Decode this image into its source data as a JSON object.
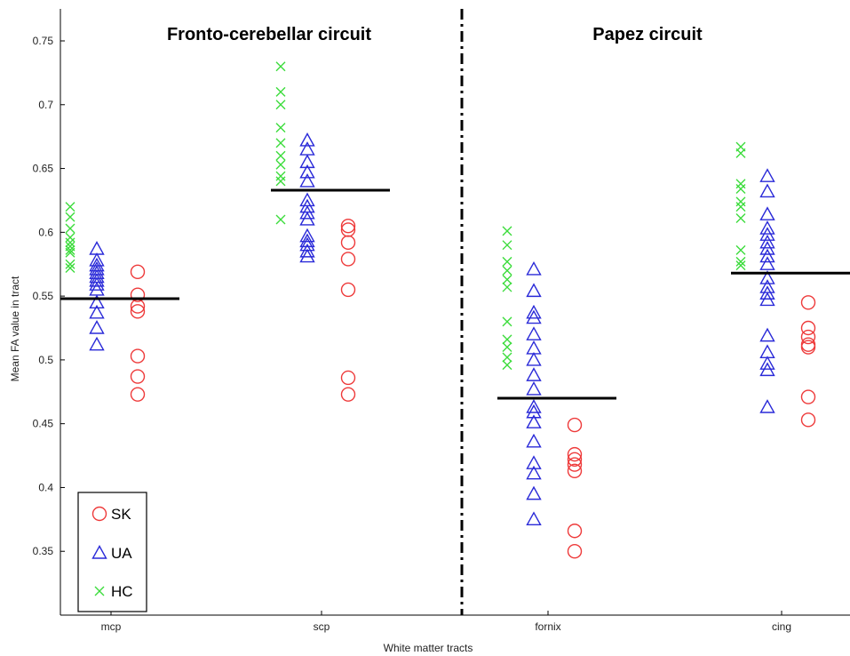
{
  "chart_data": {
    "type": "scatter",
    "xlabel": "White matter tracts",
    "ylabel": "Mean FA value in tract",
    "ylim": [
      0.3,
      0.75
    ],
    "yticks": [
      0.35,
      0.4,
      0.45,
      0.5,
      0.55,
      0.6,
      0.65,
      0.7,
      0.75
    ],
    "ytick_labels": [
      "0.35",
      "0.4",
      "0.45",
      "0.5",
      "0.55",
      "0.6",
      "0.65",
      "0.7",
      "0.75"
    ],
    "categories": [
      "mcp",
      "scp",
      "fornix",
      "cing"
    ],
    "section_titles": [
      "Fronto-cerebellar circuit",
      "Papez circuit"
    ],
    "legend": [
      {
        "label": "SK",
        "marker": "circle",
        "color": "#ee3a3a"
      },
      {
        "label": "UA",
        "marker": "triangle",
        "color": "#2a2ad8"
      },
      {
        "label": "HC",
        "marker": "x",
        "color": "#3cdc3c"
      }
    ],
    "group_means": [
      0.548,
      0.633,
      0.47,
      0.568
    ],
    "series": [
      {
        "name": "HC",
        "marker": "x",
        "color": "#3cdc3c",
        "values": [
          [
            0.62,
            0.612,
            0.603,
            0.596,
            0.592,
            0.589,
            0.586,
            0.584,
            0.575,
            0.572
          ],
          [
            0.73,
            0.71,
            0.7,
            0.682,
            0.67,
            0.66,
            0.653,
            0.644,
            0.64,
            0.61
          ],
          [
            0.601,
            0.59,
            0.577,
            0.57,
            0.563,
            0.557,
            0.53,
            0.516,
            0.51,
            0.502,
            0.496
          ],
          [
            0.667,
            0.662,
            0.638,
            0.634,
            0.624,
            0.62,
            0.611,
            0.586,
            0.577,
            0.574
          ]
        ]
      },
      {
        "name": "UA",
        "marker": "triangle",
        "color": "#2a2ad8",
        "values": [
          [
            0.587,
            0.578,
            0.574,
            0.571,
            0.568,
            0.565,
            0.562,
            0.559,
            0.555,
            0.545,
            0.537,
            0.525,
            0.512
          ],
          [
            0.672,
            0.665,
            0.655,
            0.647,
            0.64,
            0.625,
            0.62,
            0.615,
            0.61,
            0.597,
            0.593,
            0.59,
            0.585,
            0.581
          ],
          [
            0.571,
            0.554,
            0.537,
            0.533,
            0.52,
            0.509,
            0.5,
            0.488,
            0.477,
            0.463,
            0.459,
            0.451,
            0.436,
            0.419,
            0.411,
            0.395,
            0.375
          ],
          [
            0.644,
            0.632,
            0.614,
            0.603,
            0.598,
            0.592,
            0.587,
            0.581,
            0.575,
            0.564,
            0.557,
            0.552,
            0.547,
            0.519,
            0.506,
            0.497,
            0.492,
            0.463
          ]
        ]
      },
      {
        "name": "SK",
        "marker": "circle",
        "color": "#ee3a3a",
        "values": [
          [
            0.569,
            0.551,
            0.542,
            0.538,
            0.503,
            0.487,
            0.473
          ],
          [
            0.605,
            0.602,
            0.592,
            0.579,
            0.555,
            0.486,
            0.473
          ],
          [
            0.449,
            0.426,
            0.422,
            0.418,
            0.413,
            0.366,
            0.35
          ],
          [
            0.545,
            0.525,
            0.518,
            0.512,
            0.51,
            0.471,
            0.453
          ]
        ]
      }
    ]
  }
}
